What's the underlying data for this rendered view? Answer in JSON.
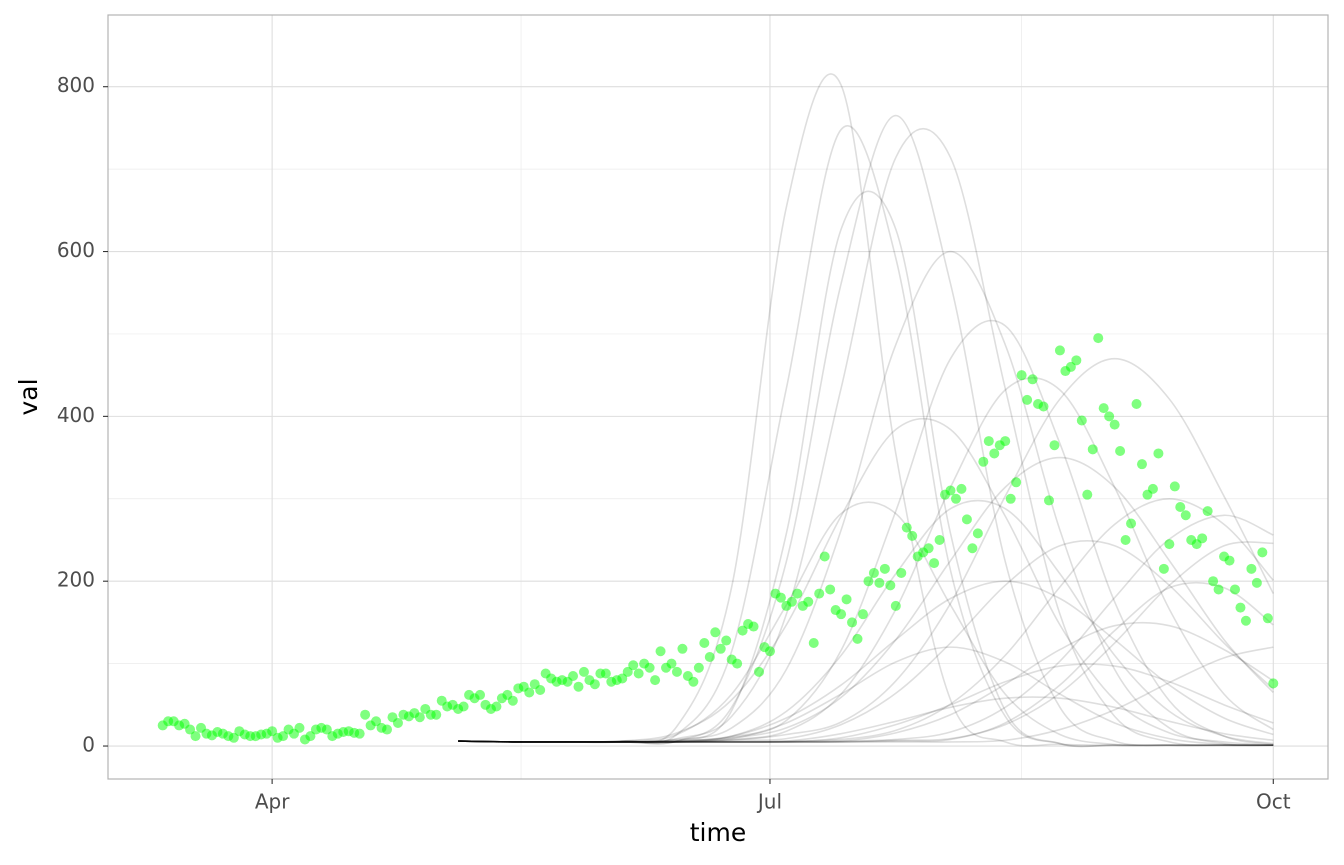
{
  "chart_data": {
    "type": "scatter",
    "x_label": "time",
    "y_label": "val",
    "xlim": [
      61,
      284
    ],
    "ylim": [
      -40,
      887
    ],
    "xticks": [
      {
        "value": 91,
        "label": "Apr"
      },
      {
        "value": 182,
        "label": "Jul"
      },
      {
        "value": 274,
        "label": "Oct"
      }
    ],
    "yticks": [
      0,
      200,
      400,
      600,
      800
    ],
    "grid": true,
    "color": "#00ff00",
    "x": [
      71,
      72,
      73,
      74,
      75,
      76,
      77,
      78,
      79,
      80,
      81,
      82,
      83,
      84,
      85,
      86,
      87,
      88,
      89,
      90,
      91,
      92,
      93,
      94,
      95,
      96,
      97,
      98,
      99,
      100,
      101,
      102,
      103,
      104,
      105,
      106,
      107,
      108,
      109,
      110,
      111,
      112,
      113,
      114,
      115,
      116,
      117,
      118,
      119,
      120,
      121,
      122,
      123,
      124,
      125,
      126,
      127,
      128,
      129,
      130,
      131,
      132,
      133,
      134,
      135,
      136,
      137,
      138,
      139,
      140,
      141,
      142,
      143,
      144,
      145,
      146,
      147,
      148,
      149,
      150,
      151,
      152,
      153,
      154,
      155,
      156,
      157,
      158,
      159,
      160,
      161,
      162,
      163,
      164,
      165,
      166,
      167,
      168,
      169,
      170,
      171,
      172,
      173,
      174,
      175,
      176,
      177,
      178,
      179,
      180,
      181,
      182,
      183,
      184,
      185,
      186,
      187,
      188,
      189,
      190,
      191,
      192,
      193,
      194,
      195,
      196,
      197,
      198,
      199,
      200,
      201,
      202,
      203,
      204,
      205,
      206,
      207,
      208,
      209,
      210,
      211,
      212,
      213,
      214,
      215,
      216,
      217,
      218,
      219,
      220,
      221,
      222,
      223,
      224,
      225,
      226,
      227,
      228,
      229,
      230,
      231,
      232,
      233,
      234,
      235,
      236,
      237,
      238,
      239,
      240,
      241,
      242,
      243,
      244,
      245,
      246,
      247,
      248,
      249,
      250,
      251,
      252,
      253,
      254,
      255,
      256,
      257,
      258,
      259,
      260,
      261,
      262,
      263,
      264,
      265,
      266,
      267,
      268,
      269,
      270,
      271,
      272,
      273,
      274
    ],
    "values": [
      25,
      30,
      30,
      25,
      27,
      20,
      12,
      22,
      15,
      13,
      17,
      15,
      12,
      10,
      18,
      14,
      12,
      12,
      14,
      15,
      18,
      10,
      12,
      20,
      15,
      22,
      8,
      12,
      20,
      22,
      20,
      12,
      15,
      17,
      18,
      16,
      15,
      38,
      25,
      30,
      22,
      20,
      35,
      28,
      38,
      36,
      40,
      35,
      45,
      38,
      38,
      55,
      48,
      50,
      45,
      48,
      62,
      58,
      62,
      50,
      45,
      48,
      58,
      62,
      55,
      70,
      72,
      65,
      75,
      68,
      88,
      82,
      78,
      80,
      78,
      85,
      72,
      90,
      80,
      75,
      88,
      88,
      78,
      80,
      82,
      90,
      98,
      88,
      100,
      95,
      80,
      115,
      95,
      100,
      90,
      118,
      85,
      78,
      95,
      125,
      108,
      138,
      118,
      128,
      105,
      100,
      140,
      148,
      145,
      90,
      120,
      115,
      185,
      180,
      170,
      175,
      185,
      170,
      175,
      125,
      185,
      230,
      190,
      165,
      160,
      178,
      150,
      130,
      160,
      200,
      210,
      198,
      215,
      195,
      170,
      210,
      265,
      255,
      230,
      235,
      240,
      222,
      250,
      305,
      310,
      300,
      312,
      275,
      240,
      258,
      345,
      370,
      355,
      365,
      370,
      300,
      320,
      450,
      420,
      445,
      415,
      412,
      298,
      365,
      480,
      455,
      460,
      468,
      395,
      305,
      360,
      495,
      410,
      400,
      390,
      358,
      250,
      270,
      415,
      342,
      305,
      312,
      355,
      215,
      245,
      315,
      290,
      280,
      250,
      245,
      252,
      285,
      200,
      190,
      230,
      225,
      190,
      168,
      152,
      215,
      198,
      235,
      155,
      76
    ],
    "lines": {
      "type": "line",
      "color": "#000000",
      "x": [
        125,
        135,
        145,
        155,
        165,
        175,
        185,
        195,
        205,
        215,
        225,
        235,
        245,
        255,
        265,
        274
      ],
      "series": [
        {
          "values": [
            6,
            5,
            5,
            6,
            24,
            193,
            654,
            802,
            355,
            56,
            5,
            2,
            1,
            1,
            1,
            1
          ]
        },
        {
          "values": [
            6,
            5,
            5,
            6,
            14,
            115,
            434,
            748,
            592,
            213,
            36,
            3,
            1,
            1,
            1,
            1
          ]
        },
        {
          "values": [
            6,
            5,
            5,
            5,
            6,
            47,
            224,
            561,
            765,
            561,
            224,
            47,
            6,
            1,
            1,
            1
          ]
        },
        {
          "values": [
            6,
            5,
            5,
            5,
            9,
            36,
            160,
            434,
            714,
            714,
            434,
            160,
            36,
            5,
            1,
            1
          ]
        },
        {
          "values": [
            6,
            5,
            5,
            5,
            6,
            43,
            258,
            627,
            627,
            258,
            43,
            3,
            1,
            1,
            1,
            1
          ]
        },
        {
          "values": [
            6,
            5,
            5,
            5,
            8,
            22,
            93,
            262,
            487,
            600,
            487,
            262,
            93,
            22,
            3,
            1
          ]
        },
        {
          "values": [
            6,
            5,
            5,
            5,
            5,
            11,
            31,
            116,
            285,
            470,
            510,
            367,
            175,
            55,
            12,
            2
          ]
        },
        {
          "values": [
            6,
            5,
            5,
            5,
            5,
            8,
            18,
            63,
            166,
            314,
            432,
            432,
            314,
            166,
            63,
            20
          ]
        },
        {
          "values": [
            6,
            5,
            5,
            5,
            5,
            7,
            14,
            29,
            79,
            173,
            303,
            421,
            470,
            421,
            303,
            185
          ]
        },
        {
          "values": [
            6,
            5,
            5,
            6,
            16,
            56,
            147,
            279,
            384,
            384,
            279,
            147,
            56,
            16,
            5,
            1
          ]
        },
        {
          "values": [
            6,
            5,
            5,
            5,
            6,
            10,
            22,
            59,
            129,
            225,
            314,
            350,
            314,
            225,
            129,
            65
          ]
        },
        {
          "values": [
            6,
            5,
            5,
            5,
            5,
            5,
            6,
            8,
            19,
            51,
            110,
            193,
            269,
            300,
            269,
            201
          ]
        },
        {
          "values": [
            6,
            5,
            5,
            5,
            5,
            5,
            5,
            6,
            8,
            17,
            47,
            103,
            180,
            251,
            280,
            256
          ]
        },
        {
          "values": [
            6,
            5,
            5,
            5,
            7,
            12,
            42,
            110,
            209,
            288,
            288,
            209,
            110,
            42,
            12,
            3
          ]
        },
        {
          "values": [
            6,
            5,
            5,
            5,
            5,
            7,
            9,
            26,
            64,
            125,
            195,
            243,
            243,
            195,
            125,
            69
          ]
        },
        {
          "values": [
            6,
            5,
            5,
            6,
            14,
            63,
            171,
            282,
            282,
            171,
            63,
            14,
            2,
            1,
            1,
            1
          ]
        },
        {
          "values": [
            6,
            5,
            5,
            5,
            5,
            5,
            5,
            5,
            6,
            8,
            28,
            74,
            140,
            192,
            192,
            147
          ]
        },
        {
          "values": [
            6,
            5,
            5,
            5,
            6,
            12,
            34,
            74,
            129,
            179,
            200,
            179,
            129,
            74,
            34,
            14
          ]
        },
        {
          "values": [
            6,
            5,
            5,
            5,
            5,
            5,
            5,
            5,
            7,
            9,
            26,
            64,
            125,
            195,
            243,
            246
          ]
        },
        {
          "values": [
            6,
            5,
            5,
            5,
            5,
            5,
            5,
            6,
            16,
            38,
            75,
            117,
            146,
            146,
            117,
            79
          ]
        },
        {
          "values": [
            6,
            5,
            5,
            5,
            6,
            9,
            28,
            63,
            102,
            120,
            102,
            63,
            28,
            9,
            2,
            1
          ]
        },
        {
          "values": [
            6,
            5,
            5,
            5,
            5,
            5,
            5,
            10,
            26,
            50,
            78,
            97,
            97,
            78,
            50,
            28
          ]
        },
        {
          "values": [
            6,
            5,
            5,
            5,
            5,
            5,
            5,
            5,
            5,
            5,
            7,
            20,
            44,
            77,
            107,
            120
          ]
        },
        {
          "values": [
            6,
            5,
            5,
            5,
            5,
            5,
            6,
            15,
            30,
            47,
            58,
            58,
            47,
            30,
            15,
            7
          ]
        }
      ]
    }
  }
}
